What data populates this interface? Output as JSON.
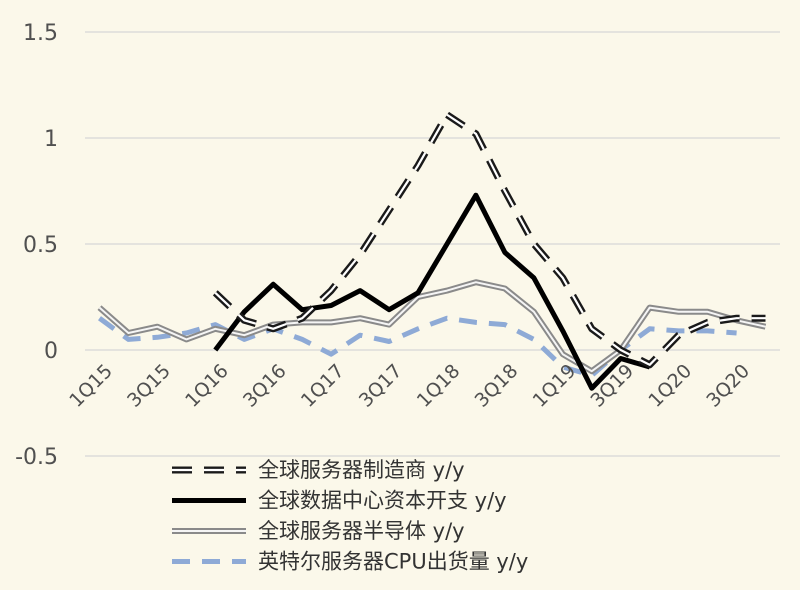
{
  "chart_data": {
    "type": "line",
    "title": "",
    "xlabel": "",
    "ylabel": "",
    "ylim": [
      -0.5,
      1.5
    ],
    "yticks": [
      "-0.5",
      "0",
      "0.5",
      "1",
      "1.5"
    ],
    "yticks_values": [
      -0.5,
      0,
      0.5,
      1,
      1.5
    ],
    "categories": [
      "1Q15",
      "2Q15",
      "3Q15",
      "4Q15",
      "1Q16",
      "2Q16",
      "3Q16",
      "4Q16",
      "1Q17",
      "2Q17",
      "3Q17",
      "4Q17",
      "1Q18",
      "2Q18",
      "3Q18",
      "4Q18",
      "1Q19",
      "2Q19",
      "3Q19",
      "4Q19",
      "1Q20",
      "2Q20",
      "3Q20",
      "4Q20"
    ],
    "xticks": [
      "1Q15",
      "3Q15",
      "1Q16",
      "3Q16",
      "1Q17",
      "3Q17",
      "1Q18",
      "3Q18",
      "1Q19",
      "3Q19",
      "1Q20",
      "3Q20"
    ],
    "grid": true,
    "legend_position": "bottom",
    "series": [
      {
        "name": "全球服务器制造商 y/y",
        "style": "dashed-outline",
        "color": "#1a1a1a",
        "values": [
          null,
          null,
          null,
          null,
          0.27,
          0.14,
          0.1,
          0.15,
          0.28,
          0.45,
          0.66,
          0.87,
          1.11,
          1.02,
          0.75,
          0.5,
          0.34,
          0.1,
          0.0,
          -0.07,
          0.07,
          0.13,
          0.15,
          0.15
        ]
      },
      {
        "name": "全球数据中心资本开支 y/y",
        "style": "thick",
        "color": "#000000",
        "values": [
          null,
          null,
          null,
          null,
          0.0,
          0.18,
          0.31,
          0.19,
          0.21,
          0.28,
          0.19,
          0.27,
          0.5,
          0.73,
          0.46,
          0.34,
          0.09,
          -0.18,
          -0.04,
          -0.08,
          null,
          null,
          null,
          null
        ]
      },
      {
        "name": "全球服务器半导体 y/y",
        "style": "double",
        "color": "#888888",
        "values": [
          0.2,
          0.08,
          0.11,
          0.05,
          0.1,
          0.07,
          0.12,
          0.13,
          0.13,
          0.15,
          0.12,
          0.25,
          0.28,
          0.32,
          0.29,
          0.18,
          -0.02,
          -0.1,
          0.0,
          0.2,
          0.18,
          0.18,
          0.14,
          0.11
        ]
      },
      {
        "name": "英特尔服务器CPU出货量 y/y",
        "style": "dashed",
        "color": "#8eaad6",
        "values": [
          0.15,
          0.05,
          0.06,
          0.08,
          0.12,
          0.05,
          0.1,
          0.05,
          -0.02,
          0.07,
          0.04,
          0.1,
          0.15,
          0.13,
          0.12,
          0.05,
          -0.08,
          -0.12,
          0.0,
          0.1,
          0.09,
          0.09,
          0.08,
          null
        ]
      }
    ]
  }
}
